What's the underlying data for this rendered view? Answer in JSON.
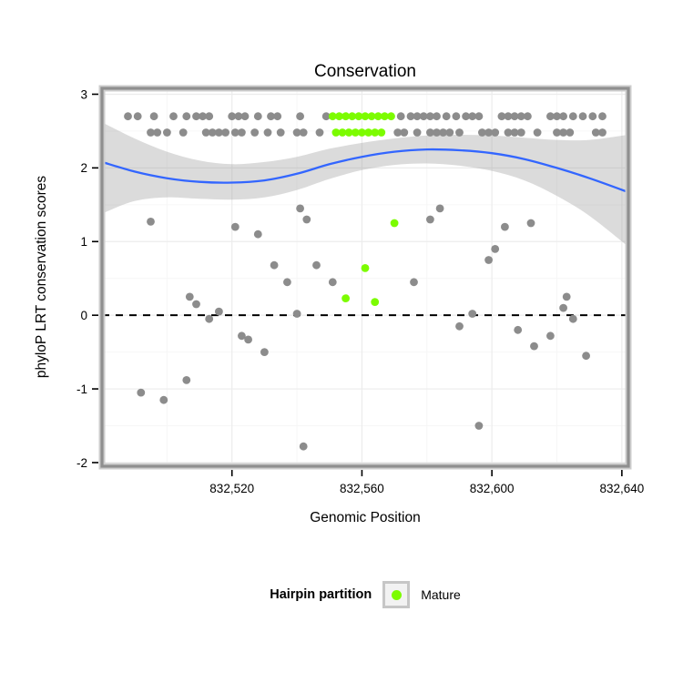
{
  "chart": {
    "title": "Conservation",
    "xlabel": "Genomic Position",
    "ylabel": "phyloP LRT conservation scores"
  },
  "legend": {
    "title": "Hairpin partition",
    "items": [
      {
        "label": "Mature",
        "color": "#7CFC00"
      }
    ]
  },
  "chart_data": {
    "type": "scatter",
    "title": "Conservation",
    "xlabel": "Genomic Position",
    "ylabel": "phyloP LRT conservation scores",
    "xlim": [
      832480,
      832642
    ],
    "ylim": [
      -2.05,
      3.08
    ],
    "x_ticks": [
      {
        "value": 832520,
        "label": "832,520"
      },
      {
        "value": 832560,
        "label": "832,560"
      },
      {
        "value": 832600,
        "label": "832,600"
      },
      {
        "value": 832640,
        "label": "832,640"
      }
    ],
    "y_ticks": [
      {
        "value": -2,
        "label": "-2"
      },
      {
        "value": -1,
        "label": "-1"
      },
      {
        "value": 0,
        "label": "0"
      },
      {
        "value": 1,
        "label": "1"
      },
      {
        "value": 2,
        "label": "2"
      },
      {
        "value": 3,
        "label": "3"
      }
    ],
    "minor_x": [
      832500,
      832540,
      832580,
      832620
    ],
    "minor_y": [
      -1.5,
      -0.5,
      0.5,
      1.5,
      2.5
    ],
    "reference_line": 0,
    "colors": {
      "panel_bg": "#ffffff",
      "grid_major": "#ececec",
      "grid_minor": "#f6f6f6",
      "point": "#8c8c8c",
      "mature": "#7CFC00",
      "smooth": "#3366FF",
      "band": "#999999",
      "band_opacity": 0.35,
      "border_outer": "#cdcdcd",
      "border_inner": "#8f8f8f"
    },
    "smooth": {
      "x": [
        832480,
        832490,
        832500,
        832510,
        832520,
        832530,
        832540,
        832550,
        832560,
        832570,
        832580,
        832590,
        832600,
        832610,
        832620,
        832630,
        832642
      ],
      "fit": [
        2.08,
        1.95,
        1.86,
        1.81,
        1.8,
        1.83,
        1.92,
        2.05,
        2.15,
        2.22,
        2.25,
        2.24,
        2.2,
        2.12,
        2.0,
        1.86,
        1.67
      ],
      "lower": [
        1.38,
        1.55,
        1.6,
        1.58,
        1.57,
        1.6,
        1.7,
        1.85,
        1.97,
        2.04,
        2.06,
        2.03,
        1.96,
        1.83,
        1.62,
        1.35,
        0.93
      ],
      "upper": [
        2.62,
        2.4,
        2.22,
        2.1,
        2.05,
        2.08,
        2.15,
        2.26,
        2.34,
        2.4,
        2.44,
        2.45,
        2.44,
        2.41,
        2.38,
        2.38,
        2.45
      ]
    },
    "series": [
      {
        "name": "phyloP scores",
        "color": "#8c8c8c",
        "points": [
          [
            832488,
            2.7
          ],
          [
            832491,
            2.7
          ],
          [
            832496,
            2.7
          ],
          [
            832502,
            2.7
          ],
          [
            832506,
            2.7
          ],
          [
            832509,
            2.7
          ],
          [
            832511,
            2.7
          ],
          [
            832513,
            2.7
          ],
          [
            832520,
            2.7
          ],
          [
            832522,
            2.7
          ],
          [
            832524,
            2.7
          ],
          [
            832528,
            2.7
          ],
          [
            832532,
            2.7
          ],
          [
            832534,
            2.7
          ],
          [
            832541,
            2.7
          ],
          [
            832549,
            2.7
          ],
          [
            832572,
            2.7
          ],
          [
            832575,
            2.7
          ],
          [
            832577,
            2.7
          ],
          [
            832579,
            2.7
          ],
          [
            832581,
            2.7
          ],
          [
            832583,
            2.7
          ],
          [
            832586,
            2.7
          ],
          [
            832589,
            2.7
          ],
          [
            832592,
            2.7
          ],
          [
            832594,
            2.7
          ],
          [
            832596,
            2.7
          ],
          [
            832603,
            2.7
          ],
          [
            832605,
            2.7
          ],
          [
            832607,
            2.7
          ],
          [
            832609,
            2.7
          ],
          [
            832611,
            2.7
          ],
          [
            832618,
            2.7
          ],
          [
            832620,
            2.7
          ],
          [
            832622,
            2.7
          ],
          [
            832625,
            2.7
          ],
          [
            832628,
            2.7
          ],
          [
            832631,
            2.7
          ],
          [
            832634,
            2.7
          ],
          [
            832495,
            2.48
          ],
          [
            832497,
            2.48
          ],
          [
            832500,
            2.48
          ],
          [
            832505,
            2.48
          ],
          [
            832512,
            2.48
          ],
          [
            832514,
            2.48
          ],
          [
            832516,
            2.48
          ],
          [
            832518,
            2.48
          ],
          [
            832521,
            2.48
          ],
          [
            832523,
            2.48
          ],
          [
            832527,
            2.48
          ],
          [
            832531,
            2.48
          ],
          [
            832535,
            2.48
          ],
          [
            832540,
            2.48
          ],
          [
            832542,
            2.48
          ],
          [
            832547,
            2.48
          ],
          [
            832571,
            2.48
          ],
          [
            832573,
            2.48
          ],
          [
            832577,
            2.48
          ],
          [
            832581,
            2.48
          ],
          [
            832583,
            2.48
          ],
          [
            832585,
            2.48
          ],
          [
            832587,
            2.48
          ],
          [
            832590,
            2.48
          ],
          [
            832597,
            2.48
          ],
          [
            832599,
            2.48
          ],
          [
            832601,
            2.48
          ],
          [
            832605,
            2.48
          ],
          [
            832607,
            2.48
          ],
          [
            832609,
            2.48
          ],
          [
            832614,
            2.48
          ],
          [
            832620,
            2.48
          ],
          [
            832622,
            2.48
          ],
          [
            832624,
            2.48
          ],
          [
            832632,
            2.48
          ],
          [
            832634,
            2.48
          ],
          [
            832492,
            -1.05
          ],
          [
            832495,
            1.27
          ],
          [
            832499,
            -1.15
          ],
          [
            832506,
            -0.88
          ],
          [
            832507,
            0.25
          ],
          [
            832509,
            0.15
          ],
          [
            832513,
            -0.05
          ],
          [
            832516,
            0.05
          ],
          [
            832521,
            1.2
          ],
          [
            832523,
            -0.28
          ],
          [
            832525,
            -0.33
          ],
          [
            832528,
            1.1
          ],
          [
            832530,
            -0.5
          ],
          [
            832533,
            0.68
          ],
          [
            832537,
            0.45
          ],
          [
            832540,
            0.02
          ],
          [
            832541,
            1.45
          ],
          [
            832542,
            -1.78
          ],
          [
            832543,
            1.3
          ],
          [
            832546,
            0.68
          ],
          [
            832551,
            0.45
          ],
          [
            832576,
            0.45
          ],
          [
            832581,
            1.3
          ],
          [
            832584,
            1.45
          ],
          [
            832590,
            -0.15
          ],
          [
            832594,
            0.02
          ],
          [
            832596,
            -1.5
          ],
          [
            832599,
            0.75
          ],
          [
            832601,
            0.9
          ],
          [
            832604,
            1.2
          ],
          [
            832608,
            -0.2
          ],
          [
            832612,
            1.25
          ],
          [
            832613,
            -0.42
          ],
          [
            832618,
            -0.28
          ],
          [
            832622,
            0.1
          ],
          [
            832623,
            0.25
          ],
          [
            832625,
            -0.05
          ],
          [
            832629,
            -0.55
          ]
        ]
      },
      {
        "name": "Mature",
        "color": "#7CFC00",
        "points": [
          [
            832551,
            2.7
          ],
          [
            832553,
            2.7
          ],
          [
            832555,
            2.7
          ],
          [
            832557,
            2.7
          ],
          [
            832559,
            2.7
          ],
          [
            832561,
            2.7
          ],
          [
            832563,
            2.7
          ],
          [
            832565,
            2.7
          ],
          [
            832567,
            2.7
          ],
          [
            832569,
            2.7
          ],
          [
            832552,
            2.48
          ],
          [
            832554,
            2.48
          ],
          [
            832556,
            2.48
          ],
          [
            832558,
            2.48
          ],
          [
            832560,
            2.48
          ],
          [
            832562,
            2.48
          ],
          [
            832564,
            2.48
          ],
          [
            832566,
            2.48
          ],
          [
            832555,
            0.23
          ],
          [
            832561,
            0.64
          ],
          [
            832564,
            0.18
          ],
          [
            832570,
            1.25
          ]
        ]
      }
    ]
  }
}
